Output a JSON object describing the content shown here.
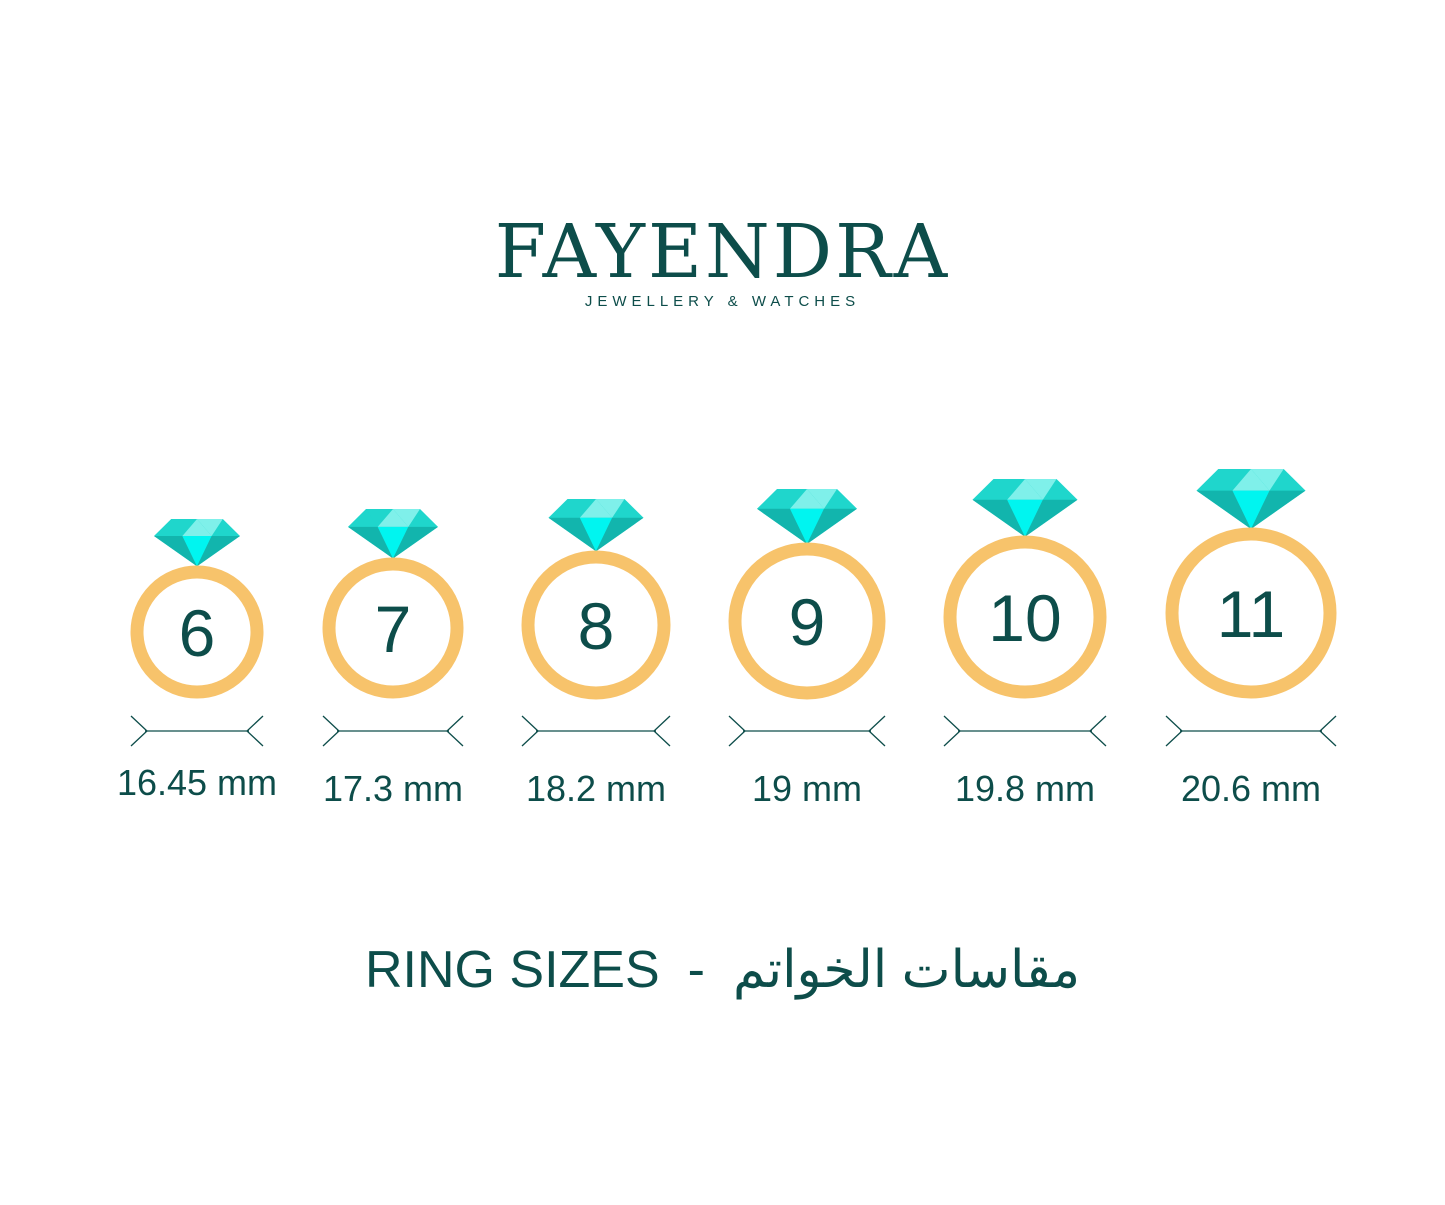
{
  "brand": {
    "name": "FAYENDRA",
    "tagline": "JEWELLERY & WATCHES"
  },
  "colors": {
    "text": "#0d4d4a",
    "ring": "#f7c36b",
    "gem_light": "#7ff0ea",
    "gem_mid": "#1fd6cc",
    "gem_dark": "#12b5ad",
    "gem_bright": "#00f5f0"
  },
  "rings": [
    {
      "size": "6",
      "diameter": "16.45 mm"
    },
    {
      "size": "7",
      "diameter": "17.3 mm"
    },
    {
      "size": "8",
      "diameter": "18.2 mm"
    },
    {
      "size": "9",
      "diameter": "19 mm"
    },
    {
      "size": "10",
      "diameter": "19.8 mm"
    },
    {
      "size": "11",
      "diameter": "20.6 mm"
    }
  ],
  "caption": {
    "english": "RING SIZES",
    "separator": "-",
    "arabic": "مقاسات الخواتم"
  }
}
